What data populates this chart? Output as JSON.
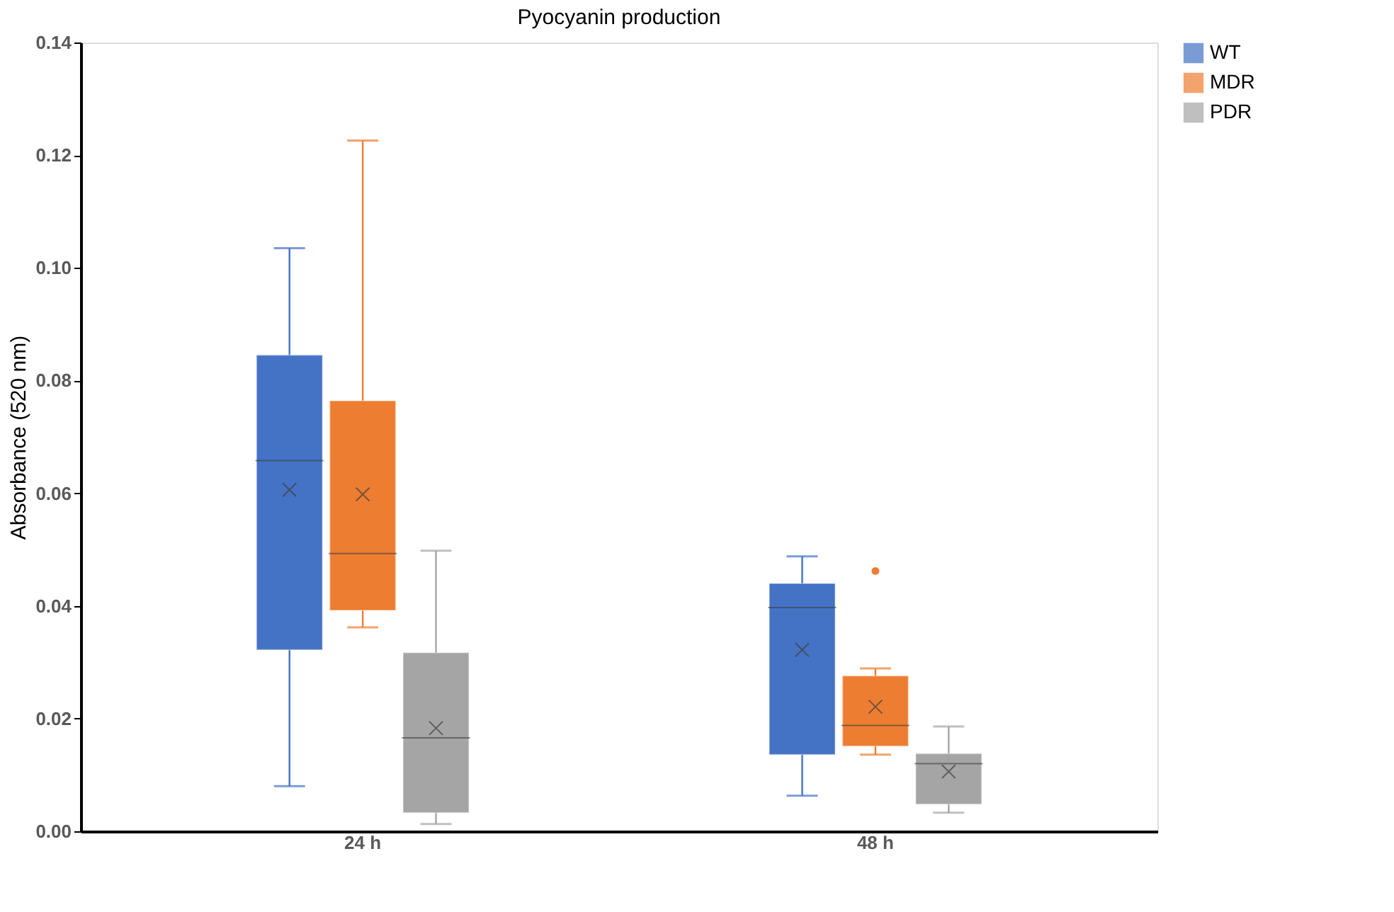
{
  "chart_data": {
    "type": "box",
    "title": "Pyocyanin production",
    "ylabel": "Absorbance (520 nm)",
    "categories": [
      "24 h",
      "48 h"
    ],
    "series": [
      {
        "name": "WT",
        "color": "#4472c4",
        "boxes": [
          {
            "low": 0.008,
            "q1": 0.0322,
            "median": 0.0658,
            "q3": 0.0845,
            "high": 0.1035,
            "mean": 0.0606
          },
          {
            "low": 0.0063,
            "q1": 0.0136,
            "median": 0.0397,
            "q3": 0.044,
            "high": 0.0488,
            "mean": 0.0322
          }
        ]
      },
      {
        "name": "MDR",
        "color": "#ed7d31",
        "boxes": [
          {
            "low": 0.0362,
            "q1": 0.0392,
            "median": 0.0493,
            "q3": 0.0764,
            "high": 0.1226,
            "mean": 0.0598
          },
          {
            "low": 0.0136,
            "q1": 0.0151,
            "median": 0.0188,
            "q3": 0.0276,
            "high": 0.0289,
            "mean": 0.0221,
            "outliers": [
              0.0462
            ]
          }
        ]
      },
      {
        "name": "PDR",
        "color": "#a5a5a5",
        "boxes": [
          {
            "low": 0.0013,
            "q1": 0.0033,
            "median": 0.0166,
            "q3": 0.0317,
            "high": 0.0498,
            "mean": 0.0183
          },
          {
            "low": 0.0033,
            "q1": 0.0048,
            "median": 0.012,
            "q3": 0.0138,
            "high": 0.0186,
            "mean": 0.0106
          }
        ]
      }
    ],
    "ylim": [
      0,
      0.14
    ],
    "yticks": [
      {
        "value": 0,
        "label": "0.00"
      },
      {
        "value": 0.02,
        "label": "0.02"
      },
      {
        "value": 0.04,
        "label": "0.04"
      },
      {
        "value": 0.06,
        "label": "0.06"
      },
      {
        "value": 0.08,
        "label": "0.08"
      },
      {
        "value": 0.1,
        "label": "0.10"
      },
      {
        "value": 0.12,
        "label": "0.12"
      },
      {
        "value": 0.14,
        "label": "0.14"
      }
    ],
    "grid": false,
    "legend": "right"
  }
}
